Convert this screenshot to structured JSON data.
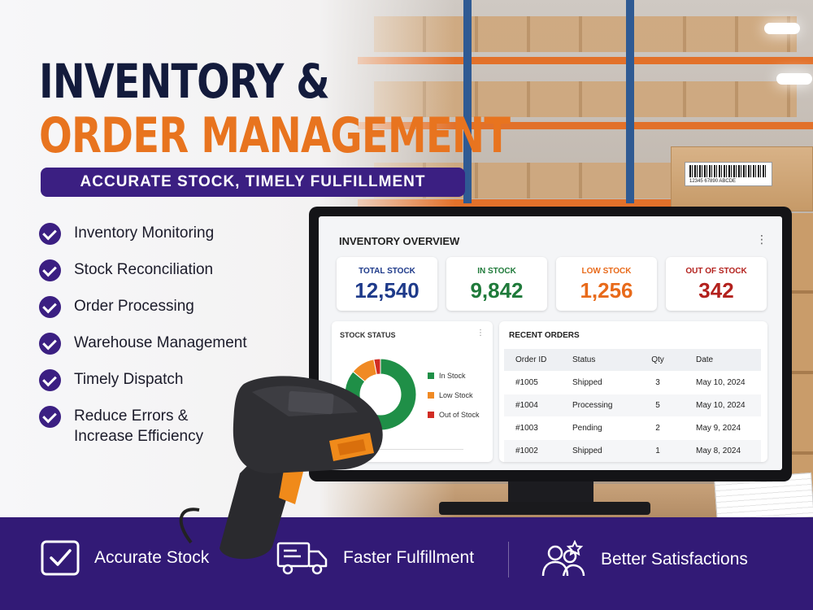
{
  "hero": {
    "title_line1": "INVENTORY &",
    "title_line2": "ORDER MANAGEMENT",
    "tagline": "ACCURATE STOCK, TIMELY FULFILLMENT"
  },
  "features": [
    {
      "label": "Inventory Monitoring"
    },
    {
      "label": "Stock Reconciliation"
    },
    {
      "label": "Order Processing"
    },
    {
      "label": "Warehouse Management"
    },
    {
      "label": "Timely Dispatch"
    },
    {
      "label": "Reduce Errors &\nIncrease Efficiency"
    }
  ],
  "barcode_text": "12345 67890     ABCDE",
  "dashboard": {
    "title": "INVENTORY OVERVIEW",
    "menu_icon": "kebab-icon",
    "stats": [
      {
        "label": "TOTAL STOCK",
        "value": "12,540",
        "color": "#1e3a8a"
      },
      {
        "label": "IN STOCK",
        "value": "9,842",
        "color": "#1f7a3a"
      },
      {
        "label": "LOW STOCK",
        "value": "1,256",
        "color": "#e86a1a"
      },
      {
        "label": "OUT OF STOCK",
        "value": "342",
        "color": "#b3211d"
      }
    ],
    "stock_status": {
      "title": "STOCK STATUS",
      "legend": [
        {
          "label": "In Stock",
          "color": "#1f8f47"
        },
        {
          "label": "Low Stock",
          "color": "#f08a24"
        },
        {
          "label": "Out of Stock",
          "color": "#d12c23"
        }
      ]
    },
    "recent_orders": {
      "title": "RECENT ORDERS",
      "columns": [
        "Order ID",
        "Status",
        "Qty",
        "Date"
      ],
      "rows": [
        {
          "id": "#1005",
          "status": "Shipped",
          "qty": "3",
          "date": "May 10, 2024"
        },
        {
          "id": "#1004",
          "status": "Processing",
          "qty": "5",
          "date": "May 10, 2024"
        },
        {
          "id": "#1003",
          "status": "Pending",
          "qty": "2",
          "date": "May 9, 2024"
        },
        {
          "id": "#1002",
          "status": "Shipped",
          "qty": "1",
          "date": "May 8, 2024"
        }
      ]
    }
  },
  "chart_data": {
    "type": "pie",
    "categories": [
      "In Stock",
      "Low Stock",
      "Out of Stock"
    ],
    "values": [
      9842,
      1256,
      342
    ],
    "title": "STOCK STATUS",
    "legend": "right"
  },
  "benefits": [
    {
      "label": "Accurate Stock",
      "icon": "checkbox-icon"
    },
    {
      "label": "Faster Fulfillment",
      "icon": "delivery-truck-icon"
    },
    {
      "label": "Better Satisfactions",
      "icon": "users-star-icon"
    }
  ],
  "colors": {
    "navy": "#131b3c",
    "orange": "#e8741f",
    "purple": "#321a76"
  }
}
